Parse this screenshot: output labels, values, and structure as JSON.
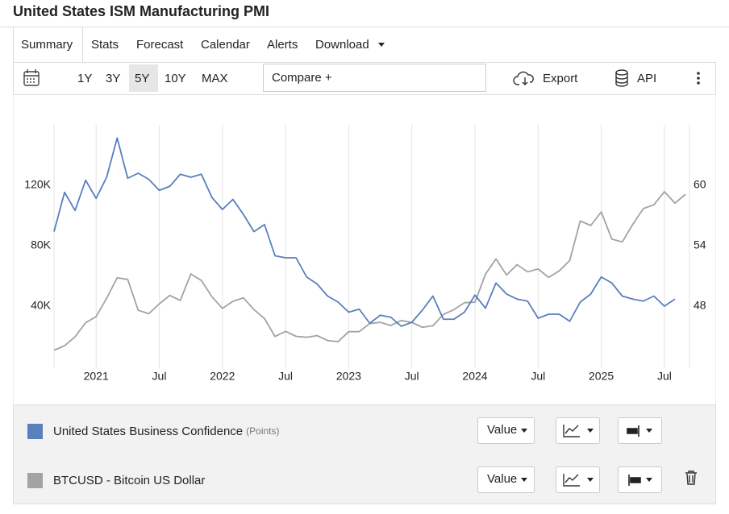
{
  "header": {
    "title": "United States ISM Manufacturing PMI"
  },
  "tabs": [
    "Summary",
    "Stats",
    "Forecast",
    "Calendar",
    "Alerts",
    "Download"
  ],
  "toolbar": {
    "ranges": [
      "1Y",
      "3Y",
      "5Y",
      "10Y",
      "MAX"
    ],
    "compare_placeholder": "Compare +",
    "export": "Export",
    "api": "API"
  },
  "legend_button": "Value",
  "chart_data": {
    "type": "line",
    "grid": "x",
    "x": [
      "2020-09",
      "2020-10",
      "2020-11",
      "2020-12",
      "2021-01",
      "2021-02",
      "2021-03",
      "2021-04",
      "2021-05",
      "2021-06",
      "2021-07",
      "2021-08",
      "2021-09",
      "2021-10",
      "2021-11",
      "2021-12",
      "2022-01",
      "2022-02",
      "2022-03",
      "2022-04",
      "2022-05",
      "2022-06",
      "2022-07",
      "2022-08",
      "2022-09",
      "2022-10",
      "2022-11",
      "2022-12",
      "2023-01",
      "2023-02",
      "2023-03",
      "2023-04",
      "2023-05",
      "2023-06",
      "2023-07",
      "2023-08",
      "2023-09",
      "2023-10",
      "2023-11",
      "2023-12",
      "2024-01",
      "2024-02",
      "2024-03",
      "2024-04",
      "2024-05",
      "2024-06",
      "2024-07",
      "2024-08",
      "2024-09",
      "2024-10",
      "2024-11",
      "2024-12",
      "2025-01",
      "2025-02",
      "2025-03",
      "2025-04",
      "2025-05",
      "2025-06",
      "2025-07",
      "2025-08",
      "2025-09"
    ],
    "xlim": [
      "2020-09",
      "2025-09"
    ],
    "xticks": [
      {
        "value": "2021-01",
        "label": "2021"
      },
      {
        "value": "2021-07",
        "label": "Jul"
      },
      {
        "value": "2022-01",
        "label": "2022"
      },
      {
        "value": "2022-07",
        "label": "Jul"
      },
      {
        "value": "2023-01",
        "label": "2023"
      },
      {
        "value": "2023-07",
        "label": "Jul"
      },
      {
        "value": "2024-01",
        "label": "2024"
      },
      {
        "value": "2024-07",
        "label": "Jul"
      },
      {
        "value": "2025-01",
        "label": "2025"
      },
      {
        "value": "2025-07",
        "label": "Jul"
      }
    ],
    "ylim": [
      0,
      160000
    ],
    "yticks": [
      {
        "value": 40000,
        "label": "40K"
      },
      {
        "value": 80000,
        "label": "80K"
      },
      {
        "value": 120000,
        "label": "120K"
      }
    ],
    "y2lim": [
      42,
      66
    ],
    "y2ticks": [
      48,
      54,
      60
    ],
    "series": [
      {
        "name": "United States Business Confidence",
        "unit": "(Points)",
        "color": "#5a7fbd",
        "axis": "y2",
        "values": [
          55.4,
          59.3,
          57.5,
          60.5,
          58.7,
          60.8,
          64.7,
          60.7,
          61.2,
          60.6,
          59.5,
          59.9,
          61.1,
          60.8,
          61.1,
          58.8,
          57.6,
          58.6,
          57.1,
          55.4,
          56.1,
          53.0,
          52.8,
          52.8,
          50.9,
          50.2,
          49.0,
          48.4,
          47.4,
          47.7,
          46.3,
          47.1,
          46.9,
          46.0,
          46.4,
          47.6,
          49.0,
          46.7,
          46.7,
          47.4,
          49.1,
          47.8,
          50.3,
          49.2,
          48.7,
          48.5,
          46.8,
          47.2,
          47.2,
          46.5,
          48.4,
          49.2,
          50.9,
          50.3,
          49.0,
          48.7,
          48.5,
          49.0,
          48.0,
          48.7,
          null
        ]
      },
      {
        "name": "BTCUSD - Bitcoin US Dollar",
        "color": "#a3a3a3",
        "axis": "y",
        "values": [
          10800,
          13800,
          19700,
          29000,
          33100,
          45200,
          58800,
          57700,
          37300,
          35000,
          41500,
          47100,
          43800,
          61300,
          57000,
          46300,
          38500,
          43200,
          45500,
          37700,
          31800,
          19900,
          23300,
          20000,
          19400,
          20500,
          17200,
          16500,
          23100,
          23100,
          28500,
          29300,
          27200,
          30500,
          29200,
          26000,
          27000,
          34500,
          37700,
          42300,
          42600,
          61200,
          71300,
          60600,
          67500,
          62700,
          64600,
          59000,
          63300,
          70200,
          96400,
          93400,
          102400,
          84400,
          82500,
          94200,
          104600,
          107100,
          115800,
          108200,
          114000
        ]
      }
    ]
  }
}
